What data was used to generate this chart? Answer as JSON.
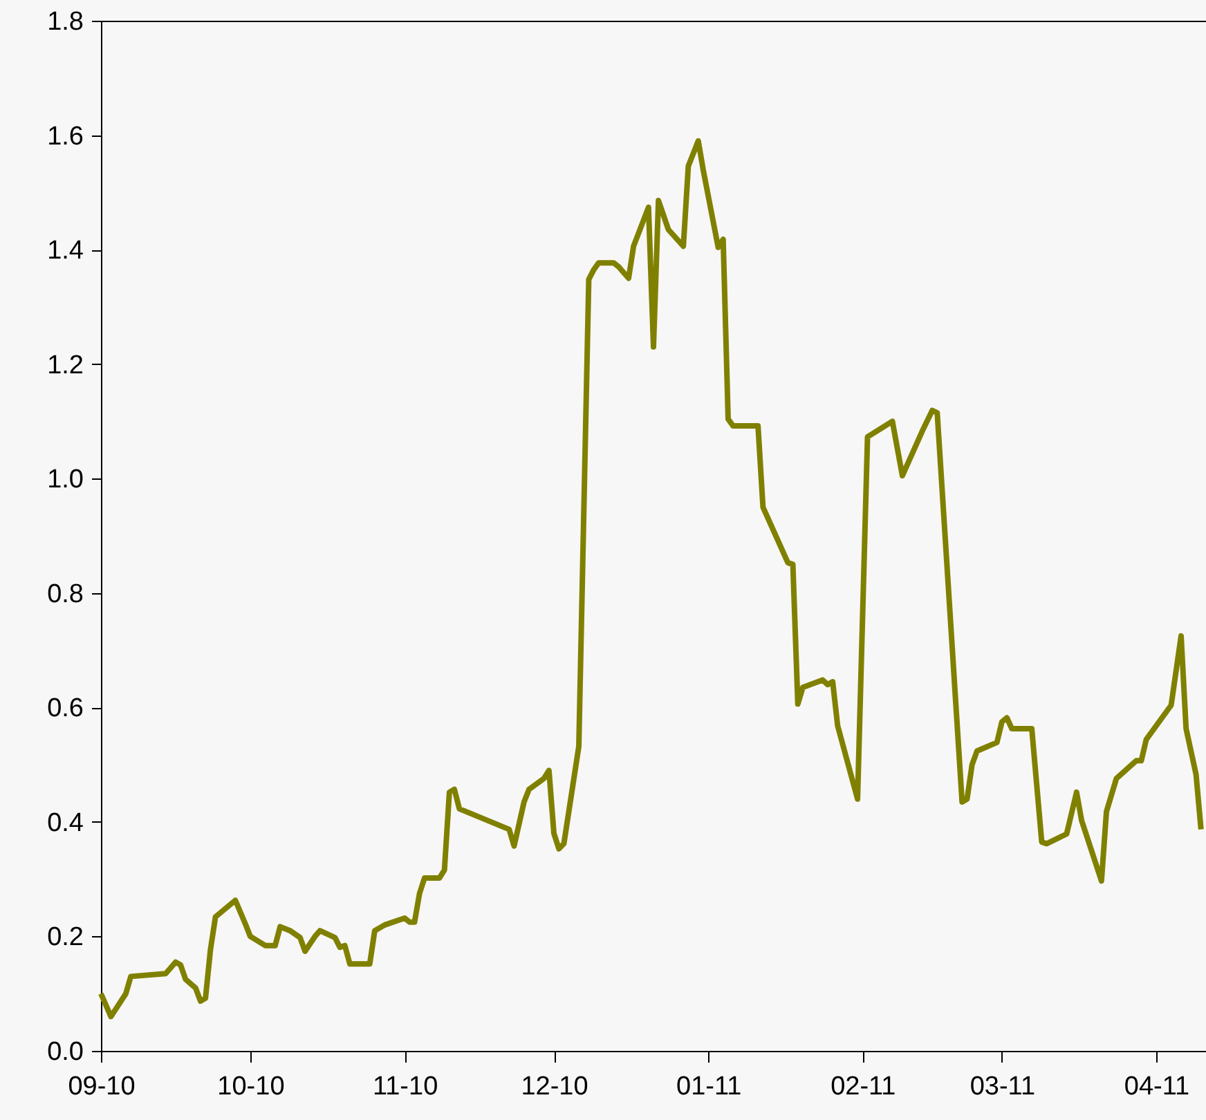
{
  "chart_data": {
    "type": "line",
    "x": [
      "2010-09-01",
      "2010-09-03",
      "2010-09-06",
      "2010-09-07",
      "2010-09-14",
      "2010-09-16",
      "2010-09-17",
      "2010-09-18",
      "2010-09-20",
      "2010-09-21",
      "2010-09-22",
      "2010-09-23",
      "2010-09-24",
      "2010-09-28",
      "2010-09-30",
      "2010-10-01",
      "2010-10-04",
      "2010-10-06",
      "2010-10-07",
      "2010-10-09",
      "2010-10-11",
      "2010-10-12",
      "2010-10-14",
      "2010-10-15",
      "2010-10-18",
      "2010-10-19",
      "2010-10-20",
      "2010-10-21",
      "2010-10-25",
      "2010-10-26",
      "2010-10-28",
      "2010-11-01",
      "2010-11-02",
      "2010-11-03",
      "2010-11-04",
      "2010-11-05",
      "2010-11-08",
      "2010-11-09",
      "2010-11-10",
      "2010-11-11",
      "2010-11-12",
      "2010-11-22",
      "2010-11-23",
      "2010-11-25",
      "2010-11-26",
      "2010-11-29",
      "2010-11-30",
      "2010-12-01",
      "2010-12-02",
      "2010-12-03",
      "2010-12-06",
      "2010-12-08",
      "2010-12-09",
      "2010-12-10",
      "2010-12-13",
      "2010-12-14",
      "2010-12-16",
      "2010-12-17",
      "2010-12-20",
      "2010-12-21",
      "2010-12-22",
      "2010-12-24",
      "2010-12-27",
      "2010-12-28",
      "2010-12-30",
      "2010-12-31",
      "2011-01-03",
      "2011-01-04",
      "2011-01-05",
      "2011-01-06",
      "2011-01-11",
      "2011-01-12",
      "2011-01-17",
      "2011-01-18",
      "2011-01-19",
      "2011-01-20",
      "2011-01-24",
      "2011-01-25",
      "2011-01-26",
      "2011-01-27",
      "2011-01-31",
      "2011-02-02",
      "2011-02-07",
      "2011-02-09",
      "2011-02-13",
      "2011-02-15",
      "2011-02-16",
      "2011-02-21",
      "2011-02-22",
      "2011-02-23",
      "2011-02-24",
      "2011-02-28",
      "2011-03-01",
      "2011-03-02",
      "2011-03-03",
      "2011-03-07",
      "2011-03-09",
      "2011-03-10",
      "2011-03-14",
      "2011-03-16",
      "2011-03-17",
      "2011-03-21",
      "2011-03-22",
      "2011-03-24",
      "2011-03-28",
      "2011-03-29",
      "2011-03-30",
      "2011-04-04",
      "2011-04-06",
      "2011-04-07",
      "2011-04-09",
      "2011-04-10"
    ],
    "series": [
      {
        "color": "#808000",
        "values": [
          0.1,
          0.06,
          0.1,
          0.13,
          0.135,
          0.155,
          0.15,
          0.125,
          0.11,
          0.087,
          0.092,
          0.177,
          0.234,
          0.263,
          0.222,
          0.2,
          0.184,
          0.184,
          0.217,
          0.21,
          0.198,
          0.174,
          0.2,
          0.21,
          0.198,
          0.181,
          0.184,
          0.152,
          0.152,
          0.21,
          0.22,
          0.232,
          0.225,
          0.225,
          0.275,
          0.302,
          0.302,
          0.316,
          0.452,
          0.457,
          0.423,
          0.387,
          0.358,
          0.435,
          0.457,
          0.476,
          0.49,
          0.38,
          0.353,
          0.362,
          0.532,
          1.348,
          1.365,
          1.377,
          1.377,
          1.37,
          1.35,
          1.406,
          1.474,
          1.23,
          1.486,
          1.435,
          1.406,
          1.546,
          1.59,
          1.539,
          1.404,
          1.418,
          1.104,
          1.092,
          1.092,
          0.95,
          0.853,
          0.85,
          0.606,
          0.635,
          0.648,
          0.64,
          0.645,
          0.568,
          0.44,
          1.073,
          1.1,
          1.005,
          1.083,
          1.119,
          1.115,
          0.435,
          0.44,
          0.5,
          0.524,
          0.539,
          0.575,
          0.582,
          0.563,
          0.563,
          0.365,
          0.362,
          0.379,
          0.452,
          0.403,
          0.297,
          0.418,
          0.476,
          0.507,
          0.507,
          0.544,
          0.604,
          0.725,
          0.563,
          0.483,
          0.387
        ]
      }
    ],
    "xlim": [
      "2010-09-01",
      "2011-04-11"
    ],
    "xticks": [
      {
        "value": "2010-09-01",
        "label": "09-10"
      },
      {
        "value": "2010-10-01",
        "label": "10-10"
      },
      {
        "value": "2010-11-01",
        "label": "11-10"
      },
      {
        "value": "2010-12-01",
        "label": "12-10"
      },
      {
        "value": "2011-01-01",
        "label": "01-11"
      },
      {
        "value": "2011-02-01",
        "label": "02-11"
      },
      {
        "value": "2011-03-01",
        "label": "03-11"
      },
      {
        "value": "2011-04-01",
        "label": "04-11"
      }
    ],
    "ylim": [
      0,
      1.8
    ],
    "yticks": [
      {
        "value": 0,
        "label": "0.0"
      },
      0.2,
      0.4,
      0.6,
      0.8,
      {
        "value": 1,
        "label": "1.0"
      },
      1.2,
      1.4,
      1.6,
      1.8
    ],
    "grid": false,
    "marker": "none",
    "line_style": "solid"
  }
}
